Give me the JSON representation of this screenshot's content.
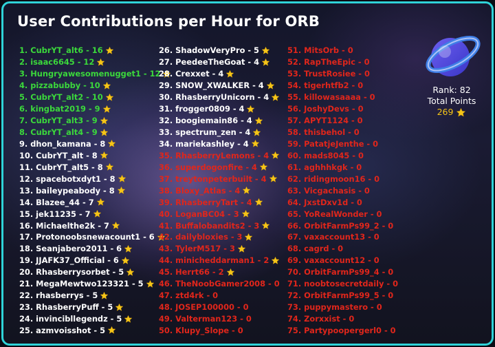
{
  "title": "User Contributions per Hour for ORB",
  "colors": {
    "top": "#3bd83b",
    "mid": "#ffffff",
    "zero": "#e0261b",
    "star": "#f5c518",
    "accent": "#2fd3d8"
  },
  "columns": [
    {
      "entries": [
        {
          "text": "1. CubrYT_alt6 - 16",
          "star": true,
          "tier": "top"
        },
        {
          "text": "2. isaac6645 - 12",
          "star": true,
          "tier": "top"
        },
        {
          "text": "3. Hungryawesomenugget1 - 12",
          "star": true,
          "tier": "top"
        },
        {
          "text": "4. pizzabubby - 10",
          "star": true,
          "tier": "top"
        },
        {
          "text": "5. CubrYT_alt2 - 10",
          "star": true,
          "tier": "top"
        },
        {
          "text": "6. kingbat2019 - 9",
          "star": true,
          "tier": "top"
        },
        {
          "text": "7. CubrYT_alt3 - 9",
          "star": true,
          "tier": "top"
        },
        {
          "text": "8. CubrYT_alt4 - 9",
          "star": true,
          "tier": "top"
        },
        {
          "text": "9. dhon_kamana - 8",
          "star": true,
          "tier": "mid"
        },
        {
          "text": "10. CubrYT_alt - 8",
          "star": true,
          "tier": "mid"
        },
        {
          "text": "11. CubrYT_alt5 - 8",
          "star": true,
          "tier": "mid"
        },
        {
          "text": "12. spacebotxdyt1 - 8",
          "star": true,
          "tier": "mid"
        },
        {
          "text": "13. baileypeabody - 8",
          "star": true,
          "tier": "mid"
        },
        {
          "text": "14. Blazee_44 - 7",
          "star": true,
          "tier": "mid"
        },
        {
          "text": "15. jek11235 - 7",
          "star": true,
          "tier": "mid"
        },
        {
          "text": "16. Michaelthe2k - 7",
          "star": true,
          "tier": "mid"
        },
        {
          "text": "17. Protonoobsnewacount1 - 6",
          "star": true,
          "tier": "mid"
        },
        {
          "text": "18. Seanjabero2011 - 6",
          "star": true,
          "tier": "mid"
        },
        {
          "text": "19. JJAFK37_Official - 6",
          "star": true,
          "tier": "mid"
        },
        {
          "text": "20. Rhasberrysorbet - 5",
          "star": true,
          "tier": "mid"
        },
        {
          "text": "21. MegaMewtwo123321 - 5",
          "star": true,
          "tier": "mid"
        },
        {
          "text": "22. rhasberrys - 5",
          "star": true,
          "tier": "mid"
        },
        {
          "text": "23. RhasberryPuff - 5",
          "star": true,
          "tier": "mid"
        },
        {
          "text": "24. invincibllegendz - 5",
          "star": true,
          "tier": "mid"
        },
        {
          "text": "25. azmvoisshot - 5",
          "star": true,
          "tier": "mid"
        }
      ]
    },
    {
      "entries": [
        {
          "text": "26. ShadowVeryPro - 5",
          "star": true,
          "tier": "mid"
        },
        {
          "text": "27. PeedeeTheGoat - 4",
          "star": true,
          "tier": "mid"
        },
        {
          "text": "28. Crexxet - 4",
          "star": true,
          "tier": "mid"
        },
        {
          "text": "29. SNOW_XWALKER - 4",
          "star": true,
          "tier": "mid"
        },
        {
          "text": "30. RhasberryUnicorn - 4",
          "star": true,
          "tier": "mid"
        },
        {
          "text": "31. frogger0809 - 4",
          "star": true,
          "tier": "mid"
        },
        {
          "text": "32. boogiemain86 - 4",
          "star": true,
          "tier": "mid"
        },
        {
          "text": "33. spectrum_zen - 4",
          "star": true,
          "tier": "mid"
        },
        {
          "text": "34. mariekashley - 4",
          "star": true,
          "tier": "mid"
        },
        {
          "text": "35. RhasberryLemons - 4",
          "star": true,
          "tier": "zero"
        },
        {
          "text": "36. superdogonfire - 4",
          "star": true,
          "tier": "zero"
        },
        {
          "text": "37. treytonpeterbuilt - 4",
          "star": true,
          "tier": "zero"
        },
        {
          "text": "38. Bloxy_Atlas - 4",
          "star": true,
          "tier": "zero"
        },
        {
          "text": "39. RhasberryTart - 4",
          "star": true,
          "tier": "zero"
        },
        {
          "text": "40. LoganBC04 - 3",
          "star": true,
          "tier": "zero"
        },
        {
          "text": "41. Buffalobandits2 - 3",
          "star": true,
          "tier": "zero"
        },
        {
          "text": "42. dailybloxies - 3",
          "star": true,
          "tier": "zero"
        },
        {
          "text": "43. TylerM517 - 3",
          "star": true,
          "tier": "zero"
        },
        {
          "text": "44. minicheddarman1 - 2",
          "star": true,
          "tier": "zero"
        },
        {
          "text": "45. Herrt66 - 2",
          "star": true,
          "tier": "zero"
        },
        {
          "text": "46. TheNoobGamer2008 - 0",
          "star": false,
          "tier": "zero"
        },
        {
          "text": "47. ztd4rk - 0",
          "star": false,
          "tier": "zero"
        },
        {
          "text": "48. JOSEP100000 - 0",
          "star": false,
          "tier": "zero"
        },
        {
          "text": "49. Valterman123 - 0",
          "star": false,
          "tier": "zero"
        },
        {
          "text": "50. Klupy_Slope - 0",
          "star": false,
          "tier": "zero"
        }
      ]
    },
    {
      "entries": [
        {
          "text": "51. MitsOrb - 0",
          "star": false,
          "tier": "zero"
        },
        {
          "text": "52. RapTheEpic - 0",
          "star": false,
          "tier": "zero"
        },
        {
          "text": "53. TrustRosiee - 0",
          "star": false,
          "tier": "zero"
        },
        {
          "text": "54. tigerhtfb2 - 0",
          "star": false,
          "tier": "zero"
        },
        {
          "text": "55. killowasaaaa - 0",
          "star": false,
          "tier": "zero"
        },
        {
          "text": "56. JoshyDevs - 0",
          "star": false,
          "tier": "zero"
        },
        {
          "text": "57. APYT1124 - 0",
          "star": false,
          "tier": "zero"
        },
        {
          "text": "58. thisbehol - 0",
          "star": false,
          "tier": "zero"
        },
        {
          "text": "59. PatatjeJenthe - 0",
          "star": false,
          "tier": "zero"
        },
        {
          "text": "60. mads8045 - 0",
          "star": false,
          "tier": "zero"
        },
        {
          "text": "61. aghhhkgk - 0",
          "star": false,
          "tier": "zero"
        },
        {
          "text": "62. ridingmoon16 - 0",
          "star": false,
          "tier": "zero"
        },
        {
          "text": "63. Vicgachasis - 0",
          "star": false,
          "tier": "zero"
        },
        {
          "text": "64. JxstDxv1d - 0",
          "star": false,
          "tier": "zero"
        },
        {
          "text": "65. YoRealWonder - 0",
          "star": false,
          "tier": "zero"
        },
        {
          "text": "66. OrbitFarmPs99_2 - 0",
          "star": false,
          "tier": "zero"
        },
        {
          "text": "67. vaxaccount13 - 0",
          "star": false,
          "tier": "zero"
        },
        {
          "text": "68. cagrd - 0",
          "star": false,
          "tier": "zero"
        },
        {
          "text": "69. vaxaccount12 - 0",
          "star": false,
          "tier": "zero"
        },
        {
          "text": "70. OrbitFarmPs99_4 - 0",
          "star": false,
          "tier": "zero"
        },
        {
          "text": "71. noobtosecretdaily - 0",
          "star": false,
          "tier": "zero"
        },
        {
          "text": "72. OrbitFarmPs99_5 - 0",
          "star": false,
          "tier": "zero"
        },
        {
          "text": "73. puppymastero - 0",
          "star": false,
          "tier": "zero"
        },
        {
          "text": "74. Zorxxist - 0",
          "star": false,
          "tier": "zero"
        },
        {
          "text": "75. Partypoopergerl0 - 0",
          "star": false,
          "tier": "zero"
        }
      ]
    }
  ],
  "stats": {
    "rank": "Rank: 82",
    "total_label": "Total Points",
    "total_value": "269"
  },
  "logo": {
    "icon": "orb-logo-icon"
  }
}
